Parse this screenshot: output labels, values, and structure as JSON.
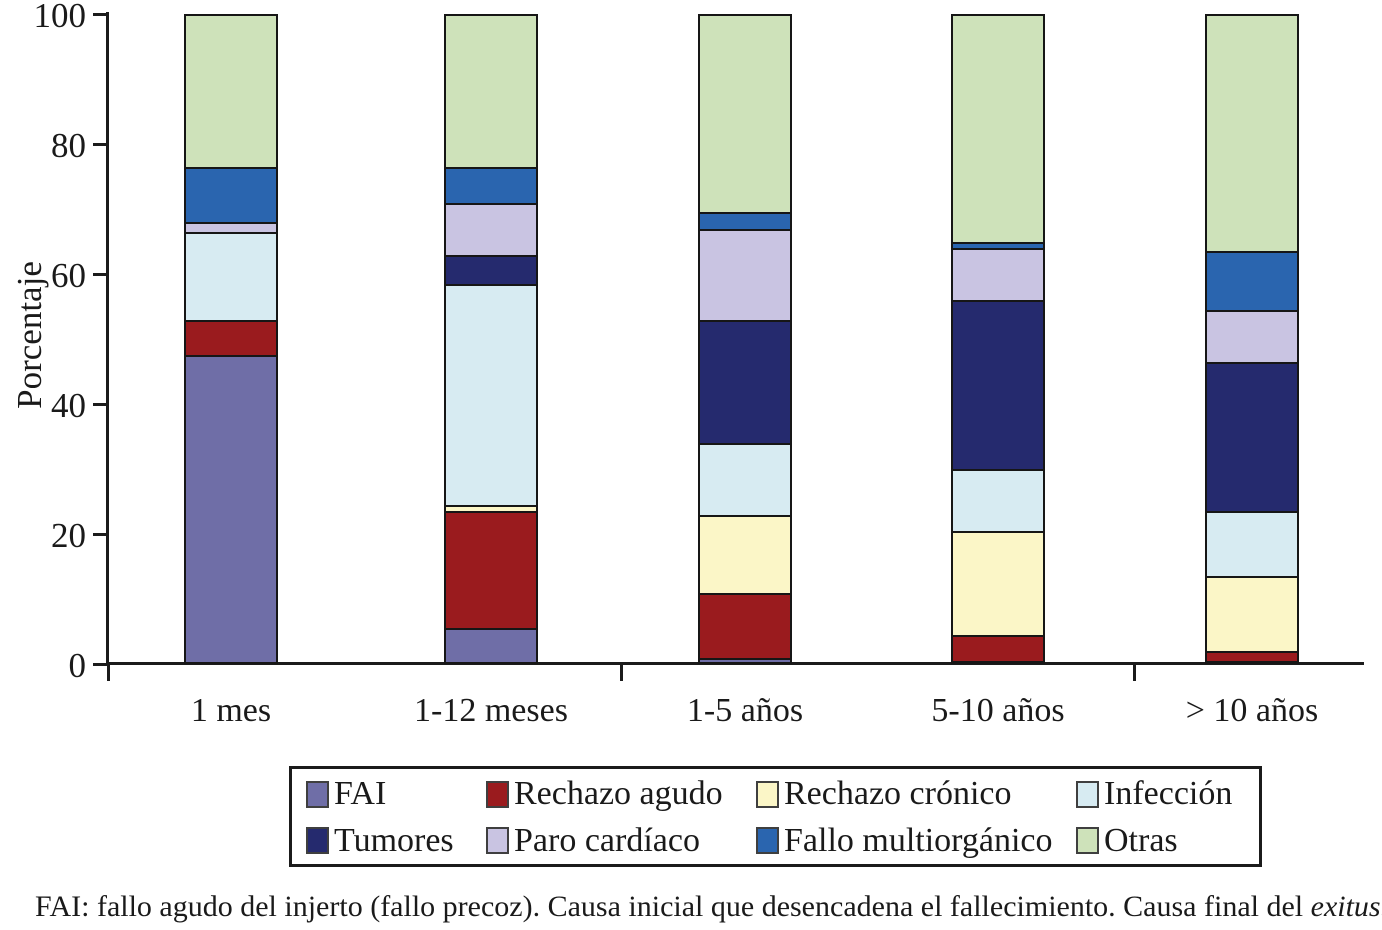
{
  "figure": {
    "ylabel": "Porcentaje",
    "footer_main": "FAI: fallo agudo del injerto (fallo precoz). Causa inicial que desencadena el fallecimiento. Causa final del ",
    "footer_italic": "exitus."
  },
  "colors": {
    "axis": "#1b1b1b",
    "segment_border": "#161616",
    "text": "#1a1a1a",
    "background": "#ffffff"
  },
  "chart_data": {
    "type": "bar",
    "stacked": true,
    "title": "",
    "xlabel": "",
    "ylabel": "Porcentaje",
    "ylim": [
      0,
      100
    ],
    "yticks": [
      0,
      20,
      40,
      60,
      80,
      100
    ],
    "grid": false,
    "legend_position": "bottom",
    "categories": [
      "1 mes",
      "1-12 meses",
      "1-5 años",
      "5-10 años",
      "> 10 años"
    ],
    "series": [
      {
        "name": "FAI",
        "color": "#6f6ea7",
        "values": [
          47.5,
          5.5,
          1.0,
          0.5,
          0.5
        ]
      },
      {
        "name": "Rechazo agudo",
        "color": "#9a1b1e",
        "values": [
          5.5,
          18.0,
          10.0,
          4.0,
          1.5
        ]
      },
      {
        "name": "Rechazo crónico",
        "color": "#fbf6c7",
        "values": [
          0,
          1.0,
          12.0,
          16.0,
          11.5
        ]
      },
      {
        "name": "Infección",
        "color": "#d7ebf2",
        "values": [
          13.5,
          34.0,
          11.0,
          9.5,
          10.0
        ]
      },
      {
        "name": "Tumores",
        "color": "#252a6e",
        "values": [
          0,
          4.5,
          19.0,
          26.0,
          23.0
        ]
      },
      {
        "name": "Paro cardíaco",
        "color": "#c9c4e2",
        "values": [
          1.5,
          8.0,
          14.0,
          8.0,
          8.0
        ]
      },
      {
        "name": "Fallo multiorgánico",
        "color": "#2a65af",
        "values": [
          8.5,
          5.5,
          2.5,
          1.0,
          9.0
        ]
      },
      {
        "name": "Otras",
        "color": "#cee2ba",
        "values": [
          23.5,
          23.5,
          30.5,
          35.0,
          36.5
        ]
      }
    ],
    "legend_rows": [
      [
        "FAI",
        "Rechazo agudo",
        "Rechazo crónico",
        "Infección"
      ],
      [
        "Tumores",
        "Paro cardíaco",
        "Fallo multiorgánico",
        "Otras"
      ]
    ]
  }
}
